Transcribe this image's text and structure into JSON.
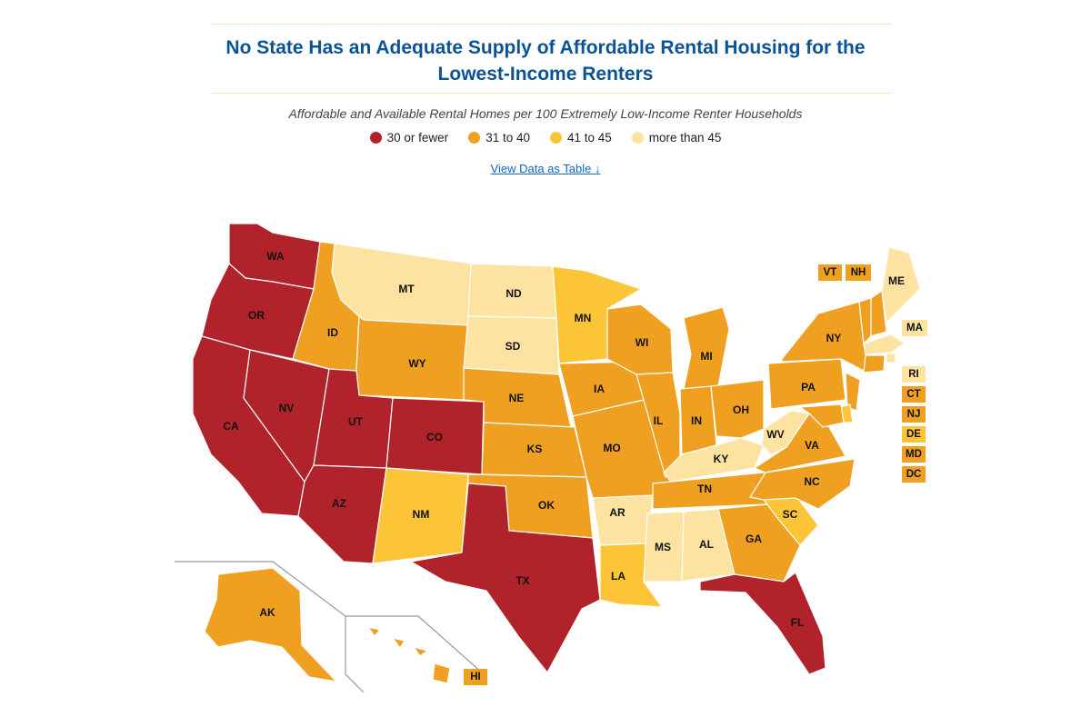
{
  "header": {
    "title_line1": "No State Has an Adequate Supply of Affordable Rental Housing for the",
    "title_line2": "Lowest-Income Renters",
    "subtitle": "Affordable and Available Rental Homes per 100 Extremely Low-Income Renter Households",
    "view_table_link": "View Data as Table ↓"
  },
  "legend": [
    {
      "key": "c1",
      "label": "30 or fewer",
      "color": "#b0232a"
    },
    {
      "key": "c2",
      "label": "31 to 40",
      "color": "#f0a020"
    },
    {
      "key": "c3",
      "label": "41 to 45",
      "color": "#fbc537"
    },
    {
      "key": "c4",
      "label": "more than 45",
      "color": "#fce3a1"
    }
  ],
  "states": {
    "WA": "c1",
    "OR": "c1",
    "CA": "c1",
    "NV": "c1",
    "AZ": "c1",
    "UT": "c1",
    "CO": "c1",
    "TX": "c1",
    "FL": "c1",
    "ID": "c2",
    "WY": "c2",
    "NE": "c2",
    "KS": "c2",
    "OK": "c2",
    "IA": "c2",
    "MO": "c2",
    "WI": "c2",
    "IL": "c2",
    "MI": "c2",
    "IN": "c2",
    "OH": "c2",
    "TN": "c2",
    "GA": "c2",
    "NC": "c2",
    "VA": "c2",
    "PA": "c2",
    "NY": "c2",
    "AK": "c2",
    "HI": "c2",
    "VT": "c2",
    "NH": "c2",
    "CT": "c2",
    "NJ": "c2",
    "MD": "c2",
    "DC": "c2",
    "MN": "c3",
    "NM": "c3",
    "LA": "c3",
    "SC": "c3",
    "DE": "c3",
    "MT": "c4",
    "ND": "c4",
    "SD": "c4",
    "AR": "c4",
    "MS": "c4",
    "AL": "c4",
    "KY": "c4",
    "WV": "c4",
    "ME": "c4",
    "MA": "c4",
    "RI": "c4"
  },
  "labels": {
    "WA": "WA",
    "OR": "OR",
    "CA": "CA",
    "NV": "NV",
    "AZ": "AZ",
    "UT": "UT",
    "CO": "CO",
    "TX": "TX",
    "FL": "FL",
    "ID": "ID",
    "WY": "WY",
    "NE": "NE",
    "KS": "KS",
    "OK": "OK",
    "IA": "IA",
    "MO": "MO",
    "WI": "WI",
    "IL": "IL",
    "MI": "MI",
    "IN": "IN",
    "OH": "OH",
    "TN": "TN",
    "GA": "GA",
    "NC": "NC",
    "VA": "VA",
    "PA": "PA",
    "NY": "NY",
    "AK": "AK",
    "HI": "HI",
    "VT": "VT",
    "NH": "NH",
    "CT": "CT",
    "NJ": "NJ",
    "MD": "MD",
    "DC": "DC",
    "MN": "MN",
    "NM": "NM",
    "LA": "LA",
    "SC": "SC",
    "DE": "DE",
    "MT": "MT",
    "ND": "ND",
    "SD": "SD",
    "AR": "AR",
    "MS": "MS",
    "AL": "AL",
    "KY": "KY",
    "WV": "WV",
    "ME": "ME",
    "MA": "MA",
    "RI": "RI"
  }
}
